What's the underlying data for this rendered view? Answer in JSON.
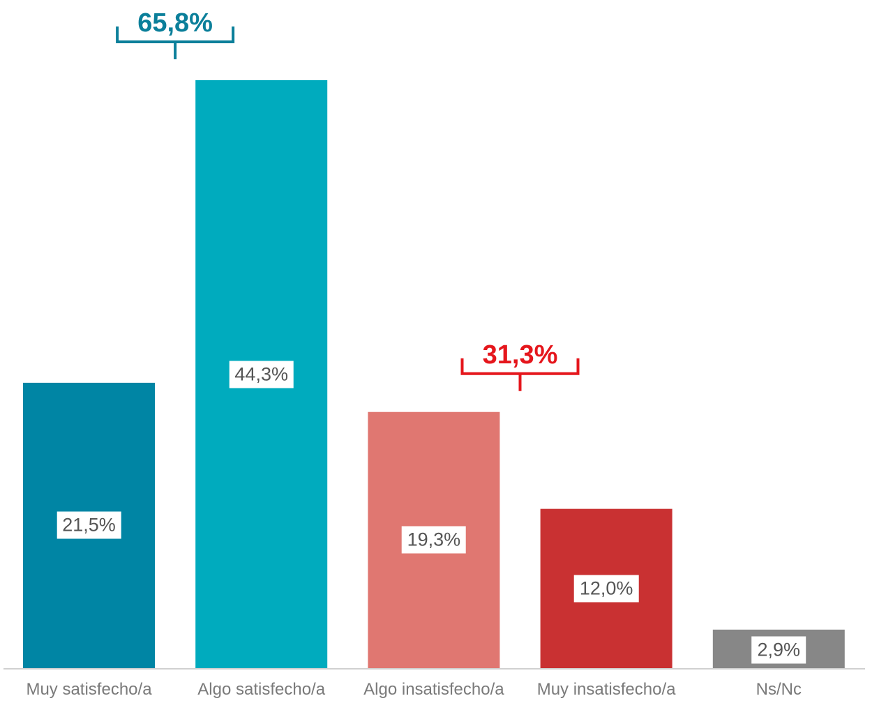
{
  "chart_data": {
    "type": "bar",
    "categories": [
      "Muy satisfecho/a",
      "Algo satisfecho/a",
      "Algo insatisfecho/a",
      "Muy insatisfecho/a",
      "Ns/Nc"
    ],
    "values": [
      21.5,
      44.3,
      19.3,
      12.0,
      2.9
    ],
    "value_labels": [
      "21,5%",
      "44,3%",
      "19,3%",
      "12,0%",
      "2,9%"
    ],
    "colors": [
      "#0085a4",
      "#00abbe",
      "#e07771",
      "#c93132",
      "#878787"
    ],
    "ylim": [
      0,
      44.3
    ],
    "grid": false,
    "groups": [
      {
        "label": "65,8%",
        "members": [
          0,
          1
        ],
        "color": "#0b7f9a"
      },
      {
        "label": "31,3%",
        "members": [
          2,
          3
        ],
        "color": "#e5161c"
      }
    ]
  }
}
